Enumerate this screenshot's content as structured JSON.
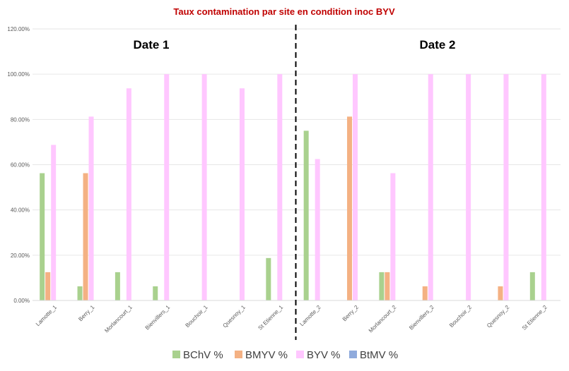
{
  "chart_data": {
    "type": "bar",
    "title": "Taux contamination par site en condition inoc BYV",
    "title_color": "#c00000",
    "group_labels": [
      "Date 1",
      "Date 2"
    ],
    "categories": [
      "Lamotte_1",
      "Berry_1",
      "Morlancourt_1",
      "Bienvillers_1",
      "Bouchoir_1",
      "Quesnoy_1",
      "St Etienne_1",
      "Lamotte_2",
      "Berry_2",
      "Morlancourt_2",
      "Bienvillers_2",
      "Bouchoir_2",
      "Quesnoy_2",
      "St Etienne_2"
    ],
    "series": [
      {
        "name": "BChV %",
        "color": "#a9d18e",
        "values": [
          56.25,
          6.25,
          12.5,
          6.25,
          0,
          0,
          18.75,
          75,
          0,
          12.5,
          0,
          0,
          0,
          12.5
        ]
      },
      {
        "name": "BMYV %",
        "color": "#f4b183",
        "values": [
          12.5,
          56.25,
          0,
          0,
          0,
          0,
          0,
          0,
          81.25,
          12.5,
          6.25,
          0,
          6.25,
          0
        ]
      },
      {
        "name": "BYV %",
        "color": "#ffc7ff",
        "values": [
          68.75,
          81.25,
          93.75,
          100,
          100,
          93.75,
          100,
          62.5,
          100,
          56.25,
          100,
          100,
          100,
          100
        ]
      },
      {
        "name": "BtMV %",
        "color": "#8faadc",
        "values": [
          0,
          0,
          0,
          0,
          0,
          0,
          0,
          0,
          0,
          0,
          0,
          0,
          0,
          0
        ]
      }
    ],
    "y_ticks": [
      "0.00%",
      "20.00%",
      "40.00%",
      "60.00%",
      "80.00%",
      "100.00%",
      "120.00%"
    ],
    "ylim": [
      0,
      120
    ],
    "grid": true,
    "legend_position": "bottom",
    "divider_after_category": 7
  }
}
